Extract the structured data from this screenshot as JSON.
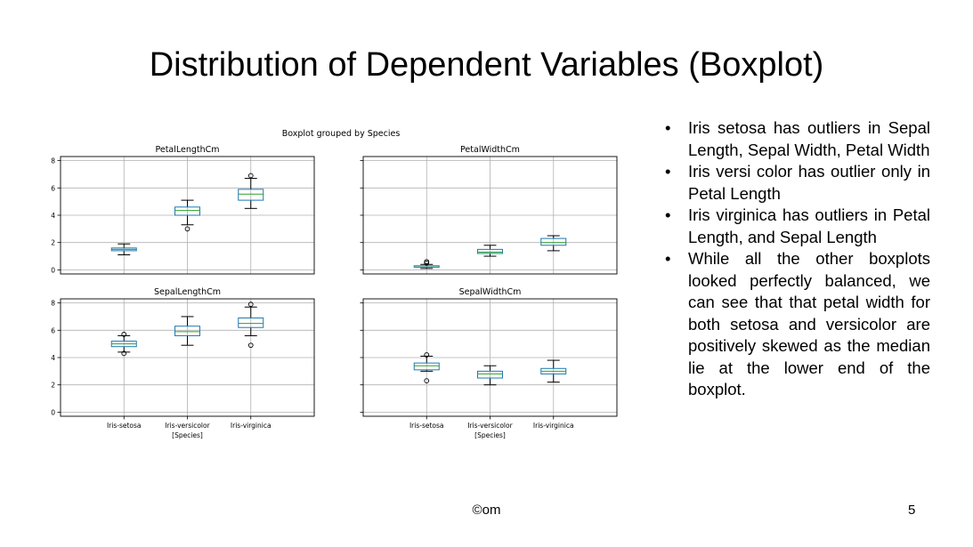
{
  "slide": {
    "title": "Distribution of Dependent Variables (Boxplot)",
    "footer": "©om",
    "page_number": "5"
  },
  "bullets": [
    "Iris setosa has outliers in Sepal Length, Sepal Width, Petal Width",
    "Iris versi color has outlier only in Petal Length",
    "Iris virginica has outliers in Petal Length, and Sepal Length",
    "While all the other boxplots looked perfectly balanced, we can see that that petal width for both setosa and versicolor are positively skewed as the median lie at the lower end of the boxplot."
  ],
  "chart_data": {
    "type": "boxplot",
    "suptitle": "Boxplot grouped by Species",
    "xlabel": "[Species]",
    "categories": [
      "Iris-setosa",
      "Iris-versicolor",
      "Iris-virginica"
    ],
    "ylim": [
      -0.3,
      8.3
    ],
    "yticks": [
      0,
      2,
      4,
      6,
      8
    ],
    "grid": true,
    "box_color": "#1f77b4",
    "median_color": "#2ca02c",
    "whisker_color": "#000000",
    "panels": [
      {
        "title": "PetalLengthCm",
        "boxes": [
          {
            "whislo": 1.1,
            "q1": 1.4,
            "med": 1.5,
            "q3": 1.6,
            "whishi": 1.9,
            "fliers": []
          },
          {
            "whislo": 3.3,
            "q1": 4.0,
            "med": 4.35,
            "q3": 4.6,
            "whishi": 5.1,
            "fliers": [
              3.0
            ]
          },
          {
            "whislo": 4.5,
            "q1": 5.1,
            "med": 5.55,
            "q3": 5.9,
            "whishi": 6.7,
            "fliers": [
              6.9
            ]
          }
        ]
      },
      {
        "title": "PetalWidthCm",
        "boxes": [
          {
            "whislo": 0.1,
            "q1": 0.2,
            "med": 0.2,
            "q3": 0.3,
            "whishi": 0.4,
            "fliers": [
              0.5,
              0.6
            ]
          },
          {
            "whislo": 1.0,
            "q1": 1.2,
            "med": 1.3,
            "q3": 1.5,
            "whishi": 1.8,
            "fliers": []
          },
          {
            "whislo": 1.4,
            "q1": 1.8,
            "med": 2.0,
            "q3": 2.3,
            "whishi": 2.5,
            "fliers": []
          }
        ]
      },
      {
        "title": "SepalLengthCm",
        "boxes": [
          {
            "whislo": 4.4,
            "q1": 4.8,
            "med": 5.0,
            "q3": 5.2,
            "whishi": 5.6,
            "fliers": [
              5.7,
              4.3
            ]
          },
          {
            "whislo": 4.9,
            "q1": 5.6,
            "med": 5.9,
            "q3": 6.3,
            "whishi": 7.0,
            "fliers": []
          },
          {
            "whislo": 5.6,
            "q1": 6.2,
            "med": 6.5,
            "q3": 6.9,
            "whishi": 7.7,
            "fliers": [
              7.9,
              4.9
            ]
          }
        ]
      },
      {
        "title": "SepalWidthCm",
        "boxes": [
          {
            "whislo": 3.0,
            "q1": 3.1,
            "med": 3.4,
            "q3": 3.6,
            "whishi": 4.1,
            "fliers": [
              4.2,
              2.3
            ]
          },
          {
            "whislo": 2.0,
            "q1": 2.5,
            "med": 2.8,
            "q3": 3.0,
            "whishi": 3.4,
            "fliers": []
          },
          {
            "whislo": 2.2,
            "q1": 2.8,
            "med": 3.0,
            "q3": 3.2,
            "whishi": 3.8,
            "fliers": []
          }
        ]
      }
    ]
  }
}
